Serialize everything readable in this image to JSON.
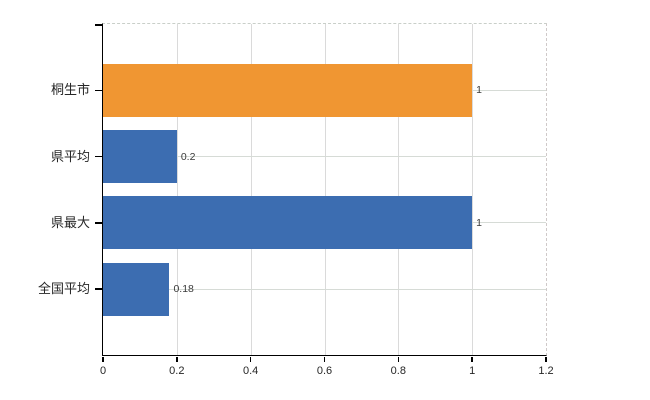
{
  "chart_data": {
    "type": "bar",
    "orientation": "horizontal",
    "categories": [
      "桐生市",
      "県平均",
      "県最大",
      "全国平均"
    ],
    "values": [
      1,
      0.2,
      1,
      0.18
    ],
    "value_labels": [
      "1",
      "0.2",
      "1",
      "0.18"
    ],
    "bar_colors": [
      "#F09632",
      "#3C6DB1",
      "#3C6DB1",
      "#3C6DB1"
    ],
    "xlim": [
      0,
      1.2
    ],
    "x_ticks": [
      0,
      0.2,
      0.4,
      0.6,
      0.8,
      1,
      1.2
    ],
    "x_tick_labels": [
      "0",
      "0.2",
      "0.4",
      "0.6",
      "0.8",
      "1",
      "1.2"
    ],
    "grid": true,
    "legend_position": "none",
    "colors": {
      "highlight_bar": "#F09632",
      "default_bar": "#3C6DB1",
      "gridline": "#DADADA",
      "category_gridline": "#D6DBD6",
      "plot_border_dashed": "#CCCCCC",
      "axis_line": "#000000",
      "category_text": "#262626",
      "value_text": "#3A3A3A",
      "tick_text": "#262626",
      "background": "#FFFFFF"
    }
  }
}
